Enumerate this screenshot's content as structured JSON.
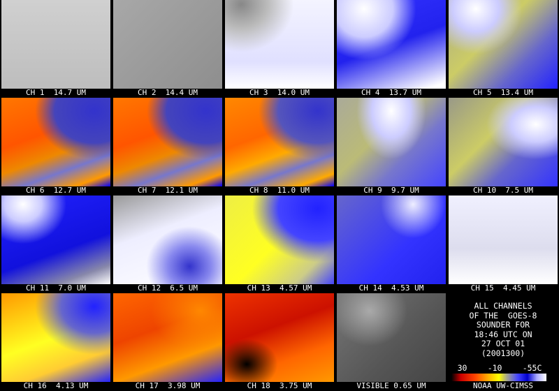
{
  "panels": [
    {
      "label": "CH 1  14.7 UM"
    },
    {
      "label": "CH 2  14.4 UM"
    },
    {
      "label": "CH 3  14.0 UM"
    },
    {
      "label": "CH 4  13.7 UM"
    },
    {
      "label": "CH 5  13.4 UM"
    },
    {
      "label": "CH 6  12.7 UM"
    },
    {
      "label": "CH 7  12.1 UM"
    },
    {
      "label": "CH 8  11.0 UM"
    },
    {
      "label": "CH 9  9.7 UM"
    },
    {
      "label": "CH 10  7.5 UM"
    },
    {
      "label": "CH 11  7.0 UM"
    },
    {
      "label": "CH 12  6.5 UM"
    },
    {
      "label": "CH 13  4.57 UM"
    },
    {
      "label": "CH 14  4.53 UM"
    },
    {
      "label": "CH 15  4.45 UM"
    },
    {
      "label": "CH 16  4.13 UM"
    },
    {
      "label": "CH 17  3.98 UM"
    },
    {
      "label": "CH 18  3.75 UM"
    },
    {
      "label": "VISIBLE 0.65 UM"
    }
  ],
  "info": {
    "lines": [
      "ALL CHANNELS",
      "OF THE  GOES-8",
      "SOUNDER FOR",
      "18:46 UTC ON",
      "27 OCT 01",
      "(2001300)"
    ],
    "scale_labels": [
      "30",
      "-10",
      "-55C"
    ],
    "credit": "NOAA UW-CIMSS"
  }
}
